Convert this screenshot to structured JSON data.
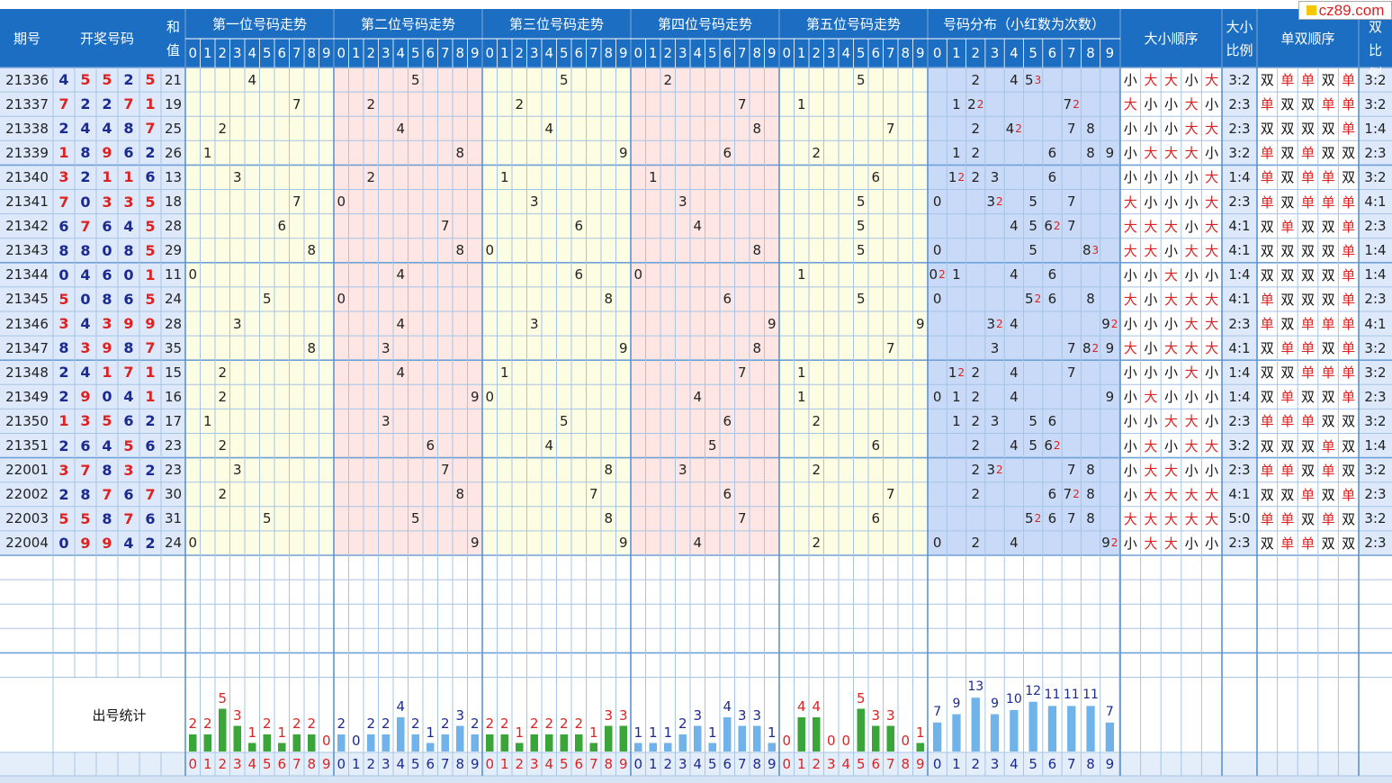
{
  "site_logo": "cz89.com",
  "headers": {
    "issue": "期号",
    "draw": "开奖号码",
    "sum": "和值",
    "pos1": "第一位号码走势",
    "pos2": "第二位号码走势",
    "pos3": "第三位号码走势",
    "pos4": "第四位号码走势",
    "pos5": "第五位号码走势",
    "dist": "号码分布（小红数为次数）",
    "size_seq": "大小顺序",
    "size_ratio": "大小比例",
    "parity_seq": "单双顺序",
    "parity_ratio": "单双比例"
  },
  "digits_header": [
    "0",
    "1",
    "2",
    "3",
    "4",
    "5",
    "6",
    "7",
    "8",
    "9"
  ],
  "stats_label": "出号统计",
  "colors": {
    "header_bg": "#1b6ec2",
    "zone_yellow": "#fdfde3",
    "zone_pink": "#fde6e4",
    "zone_blue": "#c8daf8",
    "grid": "#a6c4e4",
    "red": "#dd2222",
    "navy": "#1a2a90",
    "bar_green": "#3aa63a",
    "bar_blue": "#6fb3ea"
  },
  "chart_data": {
    "type": "table",
    "rows": [
      {
        "issue": "21336",
        "nums": [
          4,
          5,
          5,
          2,
          5
        ],
        "sum": "21",
        "size": "小大大小大",
        "size_ratio": "3:2",
        "parity": "双单单双单",
        "parity_ratio": "3:2"
      },
      {
        "issue": "21337",
        "nums": [
          7,
          2,
          2,
          7,
          1
        ],
        "sum": "19",
        "size": "大小小大小",
        "size_ratio": "2:3",
        "parity": "单双双单单",
        "parity_ratio": "3:2"
      },
      {
        "issue": "21338",
        "nums": [
          2,
          4,
          4,
          8,
          7
        ],
        "sum": "25",
        "size": "小小小大大",
        "size_ratio": "2:3",
        "parity": "双双双双单",
        "parity_ratio": "1:4"
      },
      {
        "issue": "21339",
        "nums": [
          1,
          8,
          9,
          6,
          2
        ],
        "sum": "26",
        "size": "小大大大小",
        "size_ratio": "3:2",
        "parity": "单双单双双",
        "parity_ratio": "2:3"
      },
      {
        "issue": "21340",
        "nums": [
          3,
          2,
          1,
          1,
          6
        ],
        "sum": "13",
        "size": "小小小小大",
        "size_ratio": "1:4",
        "parity": "单双单单双",
        "parity_ratio": "3:2"
      },
      {
        "issue": "21341",
        "nums": [
          7,
          0,
          3,
          3,
          5
        ],
        "sum": "18",
        "size": "大小小小大",
        "size_ratio": "2:3",
        "parity": "单双单单单",
        "parity_ratio": "4:1"
      },
      {
        "issue": "21342",
        "nums": [
          6,
          7,
          6,
          4,
          5
        ],
        "sum": "28",
        "size": "大大大小大",
        "size_ratio": "4:1",
        "parity": "双单双双单",
        "parity_ratio": "2:3"
      },
      {
        "issue": "21343",
        "nums": [
          8,
          8,
          0,
          8,
          5
        ],
        "sum": "29",
        "size": "大大小大大",
        "size_ratio": "4:1",
        "parity": "双双双双单",
        "parity_ratio": "1:4"
      },
      {
        "issue": "21344",
        "nums": [
          0,
          4,
          6,
          0,
          1
        ],
        "sum": "11",
        "size": "小小大小小",
        "size_ratio": "1:4",
        "parity": "双双双双单",
        "parity_ratio": "1:4"
      },
      {
        "issue": "21345",
        "nums": [
          5,
          0,
          8,
          6,
          5
        ],
        "sum": "24",
        "size": "大小大大大",
        "size_ratio": "4:1",
        "parity": "单双双双单",
        "parity_ratio": "2:3"
      },
      {
        "issue": "21346",
        "nums": [
          3,
          4,
          3,
          9,
          9
        ],
        "sum": "28",
        "size": "小小小大大",
        "size_ratio": "2:3",
        "parity": "单双单单单",
        "parity_ratio": "4:1"
      },
      {
        "issue": "21347",
        "nums": [
          8,
          3,
          9,
          8,
          7
        ],
        "sum": "35",
        "size": "大小大大大",
        "size_ratio": "4:1",
        "parity": "双单单双单",
        "parity_ratio": "3:2"
      },
      {
        "issue": "21348",
        "nums": [
          2,
          4,
          1,
          7,
          1
        ],
        "sum": "15",
        "size": "小小小大小",
        "size_ratio": "1:4",
        "parity": "双双单单单",
        "parity_ratio": "3:2"
      },
      {
        "issue": "21349",
        "nums": [
          2,
          9,
          0,
          4,
          1
        ],
        "sum": "16",
        "size": "小大小小小",
        "size_ratio": "1:4",
        "parity": "双单双双单",
        "parity_ratio": "2:3"
      },
      {
        "issue": "21350",
        "nums": [
          1,
          3,
          5,
          6,
          2
        ],
        "sum": "17",
        "size": "小小大大小",
        "size_ratio": "2:3",
        "parity": "单单单双双",
        "parity_ratio": "3:2"
      },
      {
        "issue": "21351",
        "nums": [
          2,
          6,
          4,
          5,
          6
        ],
        "sum": "23",
        "size": "小大小大大",
        "size_ratio": "3:2",
        "parity": "双双双单双",
        "parity_ratio": "1:4"
      },
      {
        "issue": "22001",
        "nums": [
          3,
          7,
          8,
          3,
          2
        ],
        "sum": "23",
        "size": "小大大小小",
        "size_ratio": "2:3",
        "parity": "单单双单双",
        "parity_ratio": "3:2"
      },
      {
        "issue": "22002",
        "nums": [
          2,
          8,
          7,
          6,
          7
        ],
        "sum": "30",
        "size": "小大大大大",
        "size_ratio": "4:1",
        "parity": "双双单双单",
        "parity_ratio": "2:3"
      },
      {
        "issue": "22003",
        "nums": [
          5,
          5,
          8,
          7,
          6
        ],
        "sum": "31",
        "size": "大大大大大",
        "size_ratio": "5:0",
        "parity": "单单双单双",
        "parity_ratio": "3:2"
      },
      {
        "issue": "22004",
        "nums": [
          0,
          9,
          9,
          4,
          2
        ],
        "sum": "24",
        "size": "小大大小小",
        "size_ratio": "2:3",
        "parity": "双单单双双",
        "parity_ratio": "2:3"
      }
    ],
    "stats": {
      "pos1": [
        2,
        2,
        5,
        3,
        1,
        2,
        1,
        2,
        2,
        0
      ],
      "pos2": [
        2,
        0,
        2,
        2,
        4,
        2,
        1,
        2,
        3,
        2
      ],
      "pos3": [
        2,
        2,
        1,
        2,
        2,
        2,
        2,
        1,
        3,
        3
      ],
      "pos4": [
        1,
        1,
        1,
        2,
        3,
        1,
        4,
        3,
        3,
        1
      ],
      "pos5": [
        0,
        4,
        4,
        0,
        0,
        5,
        3,
        3,
        0,
        1
      ],
      "dist": [
        7,
        9,
        13,
        9,
        10,
        12,
        11,
        11,
        11,
        7
      ]
    }
  }
}
